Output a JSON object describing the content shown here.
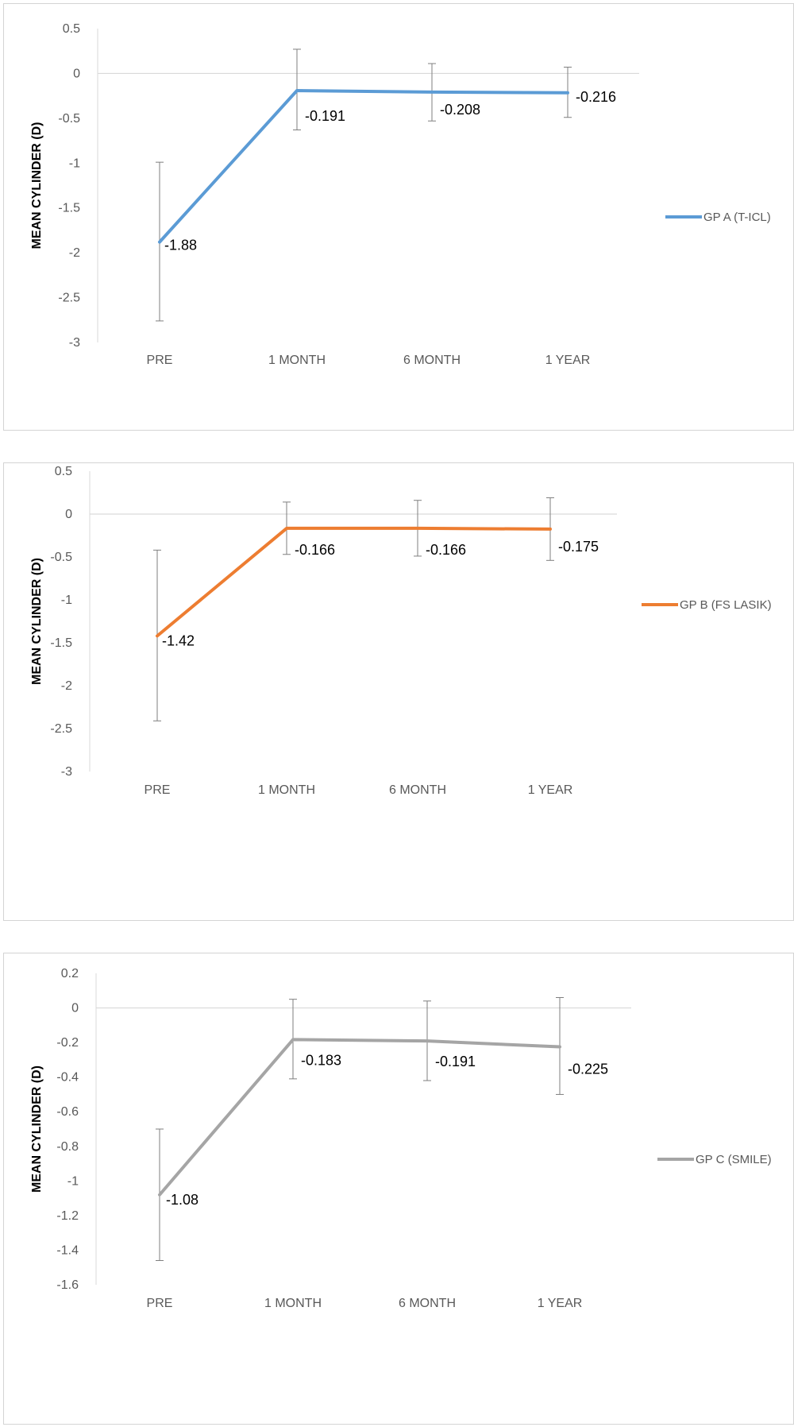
{
  "chart_data": [
    {
      "type": "line",
      "categories": [
        "PRE",
        "1 MONTH",
        "6 MONTH",
        "1 YEAR"
      ],
      "ylabel": "MEAN CYLINDER (D)",
      "ylim": [
        -3,
        0.5
      ],
      "yticks": [
        0.5,
        0,
        -0.5,
        -1,
        -1.5,
        -2,
        -2.5,
        -3
      ],
      "ytick_labels": [
        "0.5",
        "0",
        "-0.5",
        "-1",
        "-1.5",
        "-2",
        "-2.5",
        "-3"
      ],
      "legend_position": "right",
      "series": [
        {
          "name": "GP A (T-ICL)",
          "color": "#5b9bd5",
          "values": [
            -1.88,
            -0.191,
            -0.208,
            -0.216
          ],
          "labels": [
            "-1.88",
            "-0.191",
            "-0.208",
            "-0.216"
          ],
          "error_low": [
            -2.76,
            -0.63,
            -0.53,
            -0.49
          ],
          "error_high": [
            -0.99,
            0.27,
            0.11,
            0.07
          ]
        }
      ]
    },
    {
      "type": "line",
      "categories": [
        "PRE",
        "1 MONTH",
        "6 MONTH",
        "1 YEAR"
      ],
      "ylabel": "MEAN CYLINDER (D)",
      "ylim": [
        -3,
        0.5
      ],
      "yticks": [
        0.5,
        0,
        -0.5,
        -1,
        -1.5,
        -2,
        -2.5,
        -3
      ],
      "ytick_labels": [
        "0.5",
        "0",
        "-0.5",
        "-1",
        "-1.5",
        "-2",
        "-2.5",
        "-3"
      ],
      "legend_position": "right",
      "series": [
        {
          "name": "GP B (FS LASIK)",
          "color": "#ed7d31",
          "values": [
            -1.42,
            -0.166,
            -0.166,
            -0.175
          ],
          "labels": [
            "-1.42",
            "-0.166",
            "-0.166",
            "-0.175"
          ],
          "error_low": [
            -2.41,
            -0.47,
            -0.49,
            -0.54
          ],
          "error_high": [
            -0.42,
            0.14,
            0.16,
            0.19
          ]
        }
      ]
    },
    {
      "type": "line",
      "categories": [
        "PRE",
        "1 MONTH",
        "6 MONTH",
        "1 YEAR"
      ],
      "ylabel": "MEAN CYLINDER (D)",
      "ylim": [
        -1.6,
        0.2
      ],
      "yticks": [
        0.2,
        0,
        -0.2,
        -0.4,
        -0.6,
        -0.8,
        -1,
        -1.2,
        -1.4,
        -1.6
      ],
      "ytick_labels": [
        "0.2",
        "0",
        "-0.2",
        "-0.4",
        "-0.6",
        "-0.8",
        "-1",
        "-1.2",
        "-1.4",
        "-1.6"
      ],
      "legend_position": "right",
      "series": [
        {
          "name": "GP C (SMILE)",
          "color": "#a5a5a5",
          "values": [
            -1.08,
            -0.183,
            -0.191,
            -0.225
          ],
          "labels": [
            "-1.08",
            "-0.183",
            "-0.191",
            "-0.225"
          ],
          "error_low": [
            -1.46,
            -0.41,
            -0.42,
            -0.5
          ],
          "error_high": [
            -0.7,
            0.05,
            0.04,
            0.06
          ]
        }
      ]
    }
  ]
}
